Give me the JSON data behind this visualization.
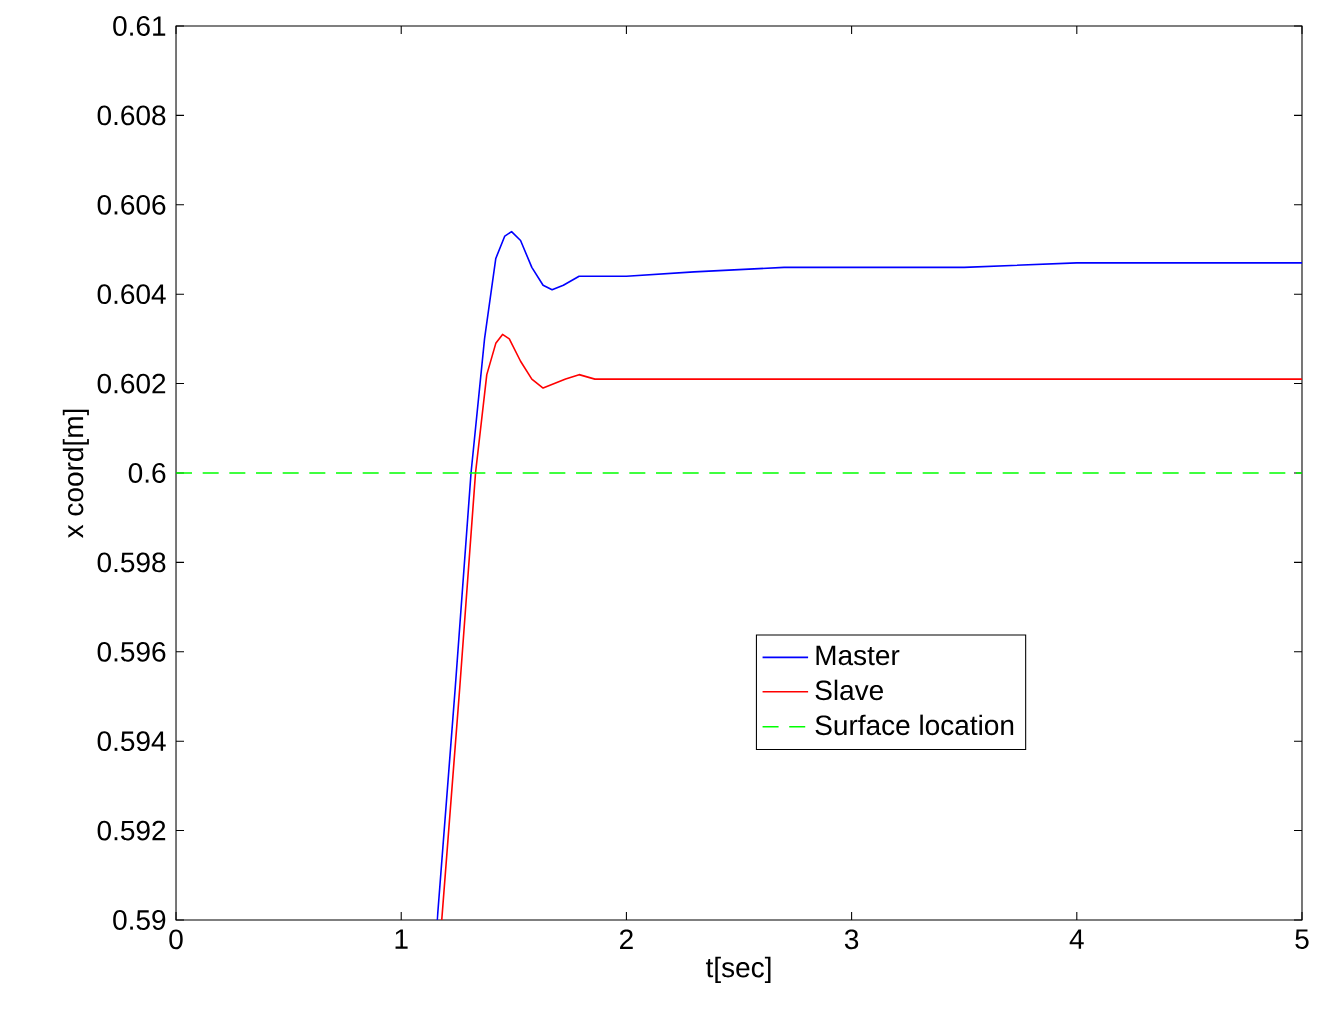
{
  "chart_data": {
    "type": "line",
    "xlabel": "t[sec]",
    "ylabel": "x coord[m]",
    "xlim": [
      0,
      5
    ],
    "ylim": [
      0.59,
      0.61
    ],
    "xticks": [
      0,
      1,
      2,
      3,
      4,
      5
    ],
    "yticks": [
      0.59,
      0.592,
      0.594,
      0.596,
      0.598,
      0.6,
      0.602,
      0.604,
      0.606,
      0.608,
      0.61
    ],
    "legend": "bottom right",
    "grid": false,
    "series": [
      {
        "name": "Master",
        "color": "#0000ff",
        "line_style": "solid",
        "x": [
          1.16,
          1.24,
          1.31,
          1.37,
          1.42,
          1.46,
          1.49,
          1.53,
          1.58,
          1.63,
          1.67,
          1.72,
          1.79,
          1.86,
          2.0,
          2.3,
          2.7,
          3.0,
          3.5,
          4.0,
          4.5,
          5.0
        ],
        "values": [
          0.59,
          0.5952,
          0.6,
          0.603,
          0.6048,
          0.6053,
          0.6054,
          0.6052,
          0.6046,
          0.6042,
          0.6041,
          0.6042,
          0.6044,
          0.6044,
          0.6044,
          0.6045,
          0.6046,
          0.6046,
          0.6046,
          0.6047,
          0.6047,
          0.6047
        ]
      },
      {
        "name": "Slave",
        "color": "#ff0000",
        "line_style": "solid",
        "x": [
          1.18,
          1.26,
          1.33,
          1.38,
          1.42,
          1.45,
          1.48,
          1.53,
          1.58,
          1.63,
          1.68,
          1.73,
          1.79,
          1.86,
          2.0,
          2.5,
          3.0,
          4.0,
          5.0
        ],
        "values": [
          0.59,
          0.5952,
          0.6,
          0.6022,
          0.6029,
          0.6031,
          0.603,
          0.6025,
          0.6021,
          0.6019,
          0.602,
          0.6021,
          0.6022,
          0.6021,
          0.6021,
          0.6021,
          0.6021,
          0.6021,
          0.6021
        ]
      },
      {
        "name": "Surface location",
        "color": "#00ff00",
        "line_style": "dashed",
        "x": [
          0,
          5
        ],
        "values": [
          0.6,
          0.6
        ]
      }
    ]
  }
}
